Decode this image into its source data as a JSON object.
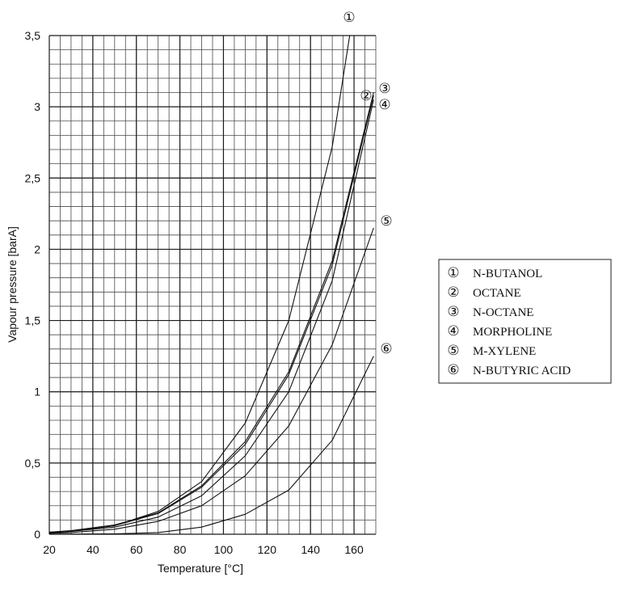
{
  "chart_data": {
    "type": "line",
    "title": "",
    "xlabel": "Temperature [°C]",
    "ylabel": "Vapour pressure [barA]",
    "xlim": [
      20,
      170
    ],
    "ylim": [
      0,
      3.5
    ],
    "x_ticks": [
      20,
      40,
      60,
      80,
      100,
      120,
      140,
      160
    ],
    "x_tick_labels": [
      "20",
      "40",
      "60",
      "80",
      "100",
      "120",
      "140",
      "160"
    ],
    "y_ticks": [
      0,
      0.5,
      1,
      1.5,
      2,
      2.5,
      3,
      3.5
    ],
    "y_tick_labels": [
      "0",
      "0,5",
      "1",
      "1,5",
      "2",
      "2,5",
      "3",
      "3,5"
    ],
    "grid": true,
    "legend_position": "right",
    "series": [
      {
        "marker": "①",
        "name": "N-BUTANOL",
        "x": [
          20,
          30,
          50,
          70,
          90,
          110,
          130,
          150,
          158
        ],
        "y": [
          0.01,
          0.02,
          0.06,
          0.16,
          0.37,
          0.78,
          1.5,
          2.72,
          3.5
        ]
      },
      {
        "marker": "②",
        "name": "OCTANE",
        "x": [
          20,
          30,
          50,
          70,
          90,
          110,
          130,
          150,
          169
        ],
        "y": [
          0.015,
          0.025,
          0.065,
          0.15,
          0.34,
          0.65,
          1.14,
          1.92,
          3.1
        ]
      },
      {
        "marker": "③",
        "name": "N-OCTANE",
        "x": [
          20,
          30,
          50,
          70,
          90,
          110,
          130,
          150,
          169
        ],
        "y": [
          0.014,
          0.024,
          0.06,
          0.145,
          0.33,
          0.63,
          1.12,
          1.89,
          3.08
        ]
      },
      {
        "marker": "④",
        "name": "MORPHOLINE",
        "x": [
          20,
          30,
          50,
          70,
          90,
          110,
          130,
          150,
          169
        ],
        "y": [
          0.01,
          0.02,
          0.05,
          0.12,
          0.27,
          0.55,
          1.0,
          1.78,
          3.05
        ]
      },
      {
        "marker": "⑤",
        "name": "M-XYLENE",
        "x": [
          20,
          30,
          50,
          70,
          90,
          110,
          130,
          150,
          169
        ],
        "y": [
          0.006,
          0.012,
          0.035,
          0.09,
          0.2,
          0.41,
          0.76,
          1.33,
          2.15
        ]
      },
      {
        "marker": "⑥",
        "name": "N-BUTYRIC ACID",
        "x": [
          20,
          50,
          70,
          90,
          110,
          130,
          150,
          169
        ],
        "y": [
          0.0,
          0.003,
          0.012,
          0.05,
          0.14,
          0.31,
          0.66,
          1.25
        ]
      }
    ]
  }
}
